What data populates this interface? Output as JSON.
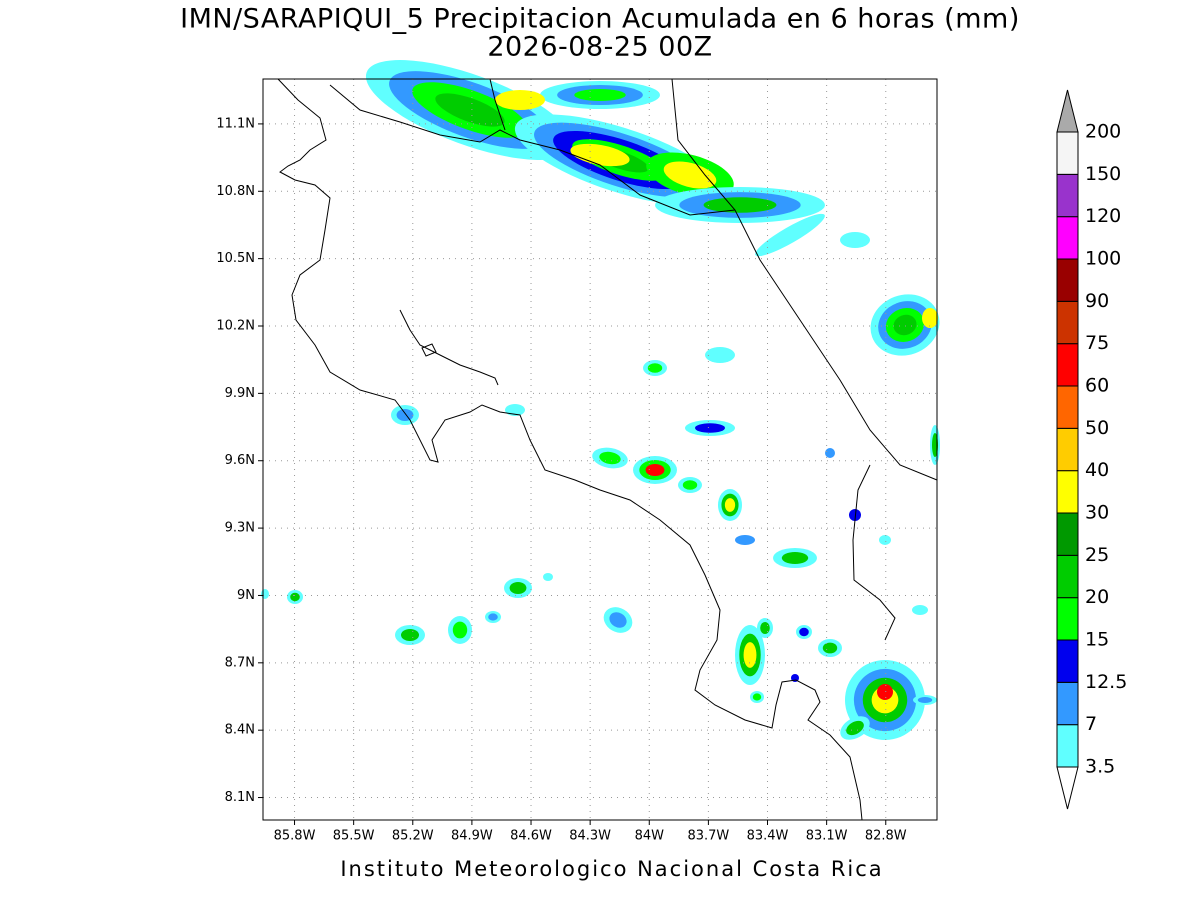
{
  "header": {
    "title": "IMN/SARAPIQUI_5 Precipitacion Acumulada en 6 horas (mm)",
    "subtitle": "2026-08-25 00Z"
  },
  "map": {
    "xlim": [
      -85.96,
      -82.54
    ],
    "ylim": [
      8.0,
      11.3
    ],
    "xticks": [
      {
        "value": -85.8,
        "label": "85.8W"
      },
      {
        "value": -85.5,
        "label": "85.5W"
      },
      {
        "value": -85.2,
        "label": "85.2W"
      },
      {
        "value": -84.9,
        "label": "84.9W"
      },
      {
        "value": -84.6,
        "label": "84.6W"
      },
      {
        "value": -84.3,
        "label": "84.3W"
      },
      {
        "value": -84.0,
        "label": "84W"
      },
      {
        "value": -83.7,
        "label": "83.7W"
      },
      {
        "value": -83.4,
        "label": "83.4W"
      },
      {
        "value": -83.1,
        "label": "83.1W"
      },
      {
        "value": -82.8,
        "label": "82.8W"
      }
    ],
    "yticks": [
      {
        "value": 8.1,
        "label": "8.1N"
      },
      {
        "value": 8.4,
        "label": "8.4N"
      },
      {
        "value": 8.7,
        "label": "8.7N"
      },
      {
        "value": 9.0,
        "label": "9N"
      },
      {
        "value": 9.3,
        "label": "9.3N"
      },
      {
        "value": 9.6,
        "label": "9.6N"
      },
      {
        "value": 9.9,
        "label": "9.9N"
      },
      {
        "value": 10.2,
        "label": "10.2N"
      },
      {
        "value": 10.5,
        "label": "10.5N"
      },
      {
        "value": 10.8,
        "label": "10.8N"
      },
      {
        "value": 11.1,
        "label": "11.1N"
      }
    ],
    "grid": true
  },
  "legend": {
    "levels": [
      3.5,
      7,
      12.5,
      15,
      20,
      25,
      30,
      40,
      50,
      60,
      75,
      90,
      100,
      120,
      150,
      200
    ],
    "colors": [
      "#ffffff",
      "#60ffff",
      "#3399ff",
      "#0000ee",
      "#00ff00",
      "#00cc00",
      "#009900",
      "#ffff00",
      "#ffcc00",
      "#ff6600",
      "#ff0000",
      "#cc3300",
      "#990000",
      "#ff00ff",
      "#9933cc",
      "#f5f5f5",
      "#aaaaaa"
    ]
  },
  "footer": {
    "text": "Instituto Meteorologico Nacional Costa Rica"
  }
}
